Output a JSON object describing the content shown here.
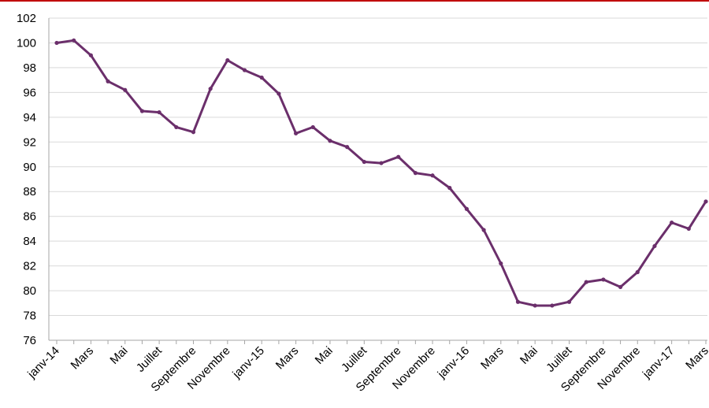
{
  "theme": {
    "accent_rule": "#c00000",
    "line_color": "#6b2f6b",
    "grid_color": "#d9d9d9",
    "axis_color": "#a6a6a6"
  },
  "chart_data": {
    "type": "line",
    "title": "",
    "xlabel": "",
    "ylabel": "",
    "ylim": [
      76,
      102
    ],
    "yticks": [
      76,
      78,
      80,
      82,
      84,
      86,
      88,
      90,
      92,
      94,
      96,
      98,
      100,
      102
    ],
    "grid": true,
    "legend": "none",
    "x_tick_labels": [
      "janv-14",
      "Mars",
      "Mai",
      "Juillet",
      "Septembre",
      "Novembre",
      "janv-15",
      "Mars",
      "Mai",
      "Juillet",
      "Septembre",
      "Novembre",
      "janv-16",
      "Mars",
      "Mai",
      "Juillet",
      "Septembre",
      "Novembre",
      "janv-17",
      "Mars"
    ],
    "x": [
      "2014-01",
      "2014-02",
      "2014-03",
      "2014-04",
      "2014-05",
      "2014-06",
      "2014-07",
      "2014-08",
      "2014-09",
      "2014-10",
      "2014-11",
      "2014-12",
      "2015-01",
      "2015-02",
      "2015-03",
      "2015-04",
      "2015-05",
      "2015-06",
      "2015-07",
      "2015-08",
      "2015-09",
      "2015-10",
      "2015-11",
      "2015-12",
      "2016-01",
      "2016-02",
      "2016-03",
      "2016-04",
      "2016-05",
      "2016-06",
      "2016-07",
      "2016-08",
      "2016-09",
      "2016-10",
      "2016-11",
      "2016-12",
      "2017-01",
      "2017-02",
      "2017-03"
    ],
    "series": [
      {
        "values": [
          100.0,
          100.2,
          99.0,
          96.9,
          96.2,
          94.5,
          94.4,
          93.2,
          92.8,
          96.3,
          98.6,
          97.8,
          97.2,
          95.9,
          92.7,
          93.2,
          92.1,
          91.6,
          90.4,
          90.3,
          90.8,
          89.5,
          89.3,
          88.3,
          86.6,
          84.9,
          82.2,
          79.1,
          78.8,
          78.8,
          79.1,
          80.7,
          80.9,
          80.3,
          81.5,
          83.6,
          85.5,
          85.0,
          87.2
        ]
      }
    ]
  }
}
